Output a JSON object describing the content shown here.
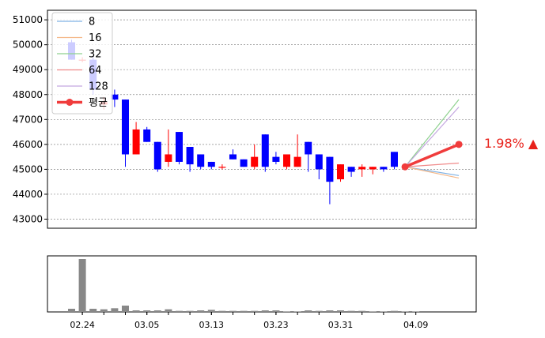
{
  "chart_data": [
    {
      "type": "candlestick",
      "title": "",
      "xlabel": "",
      "ylabel": "",
      "ylim": [
        42600,
        51400
      ],
      "yticks": [
        43000,
        44000,
        45000,
        46000,
        47000,
        48000,
        49000,
        50000,
        51000
      ],
      "grid": true,
      "legend": {
        "placement": "top-left",
        "entries": [
          {
            "label": "8",
            "color": "#7fb2e5"
          },
          {
            "label": "16",
            "color": "#f5b98a"
          },
          {
            "label": "32",
            "color": "#8fd18f"
          },
          {
            "label": "64",
            "color": "#f08a8a"
          },
          {
            "label": "128",
            "color": "#c3a6e0"
          },
          {
            "label": "평균",
            "color": "#f03c3c"
          }
        ]
      },
      "up_color": "#ff0000",
      "down_color": "#0000ff",
      "candles": [
        {
          "o": 50100,
          "h": 50200,
          "l": 49400,
          "c": 49400
        },
        {
          "o": 49400,
          "h": 49500,
          "l": 49300,
          "c": 49400
        },
        {
          "o": 49400,
          "h": 49500,
          "l": 48000,
          "c": 48200
        },
        {
          "o": 47600,
          "h": 47900,
          "l": 47400,
          "c": 47700
        },
        {
          "o": 48000,
          "h": 48200,
          "l": 47500,
          "c": 47800
        },
        {
          "o": 47800,
          "h": 47800,
          "l": 45100,
          "c": 45600
        },
        {
          "o": 45600,
          "h": 46900,
          "l": 45600,
          "c": 46600
        },
        {
          "o": 46600,
          "h": 46700,
          "l": 46100,
          "c": 46100
        },
        {
          "o": 46100,
          "h": 46100,
          "l": 44900,
          "c": 45000
        },
        {
          "o": 45300,
          "h": 46600,
          "l": 45100,
          "c": 45600
        },
        {
          "o": 46500,
          "h": 46500,
          "l": 45200,
          "c": 45300
        },
        {
          "o": 45900,
          "h": 45900,
          "l": 44900,
          "c": 45200
        },
        {
          "o": 45600,
          "h": 45600,
          "l": 45000,
          "c": 45100
        },
        {
          "o": 45300,
          "h": 45300,
          "l": 45000,
          "c": 45100
        },
        {
          "o": 45100,
          "h": 45200,
          "l": 45000,
          "c": 45100
        },
        {
          "o": 45600,
          "h": 45800,
          "l": 45400,
          "c": 45400
        },
        {
          "o": 45400,
          "h": 45400,
          "l": 45100,
          "c": 45100
        },
        {
          "o": 45100,
          "h": 46000,
          "l": 45000,
          "c": 45500
        },
        {
          "o": 46400,
          "h": 46400,
          "l": 44900,
          "c": 45100
        },
        {
          "o": 45500,
          "h": 45700,
          "l": 45200,
          "c": 45300
        },
        {
          "o": 45100,
          "h": 45600,
          "l": 45000,
          "c": 45600
        },
        {
          "o": 45100,
          "h": 46400,
          "l": 45100,
          "c": 45500
        },
        {
          "o": 46100,
          "h": 46100,
          "l": 44900,
          "c": 45600
        },
        {
          "o": 45600,
          "h": 45600,
          "l": 44600,
          "c": 45000
        },
        {
          "o": 45500,
          "h": 45500,
          "l": 43600,
          "c": 44500
        },
        {
          "o": 44600,
          "h": 45200,
          "l": 44500,
          "c": 45200
        },
        {
          "o": 45100,
          "h": 45100,
          "l": 44700,
          "c": 44900
        },
        {
          "o": 45000,
          "h": 45200,
          "l": 44700,
          "c": 45100
        },
        {
          "o": 45000,
          "h": 45100,
          "l": 44800,
          "c": 45100
        },
        {
          "o": 45100,
          "h": 45100,
          "l": 44900,
          "c": 45000
        },
        {
          "o": 45700,
          "h": 45700,
          "l": 45000,
          "c": 45100
        }
      ],
      "forecast": {
        "start_index": 31,
        "end_index": 36,
        "start_value": 45100,
        "lines": [
          {
            "name": "8",
            "end_value": 44750
          },
          {
            "name": "16",
            "end_value": 44650
          },
          {
            "name": "32",
            "end_value": 47800
          },
          {
            "name": "64",
            "end_value": 45250
          },
          {
            "name": "128",
            "end_value": 47500
          },
          {
            "name": "평균",
            "end_value": 46000
          }
        ],
        "change_label": "1.98% ▲",
        "change_color": "#e8221b"
      }
    },
    {
      "type": "bar",
      "title": "",
      "xlabel": "",
      "ylabel": "",
      "bar_color": "#888888",
      "xtick_labels": [
        {
          "index": 1,
          "label": "02.24"
        },
        {
          "index": 7,
          "label": "03.05"
        },
        {
          "index": 13,
          "label": "03.13"
        },
        {
          "index": 19,
          "label": "03.23"
        },
        {
          "index": 25,
          "label": "03.31"
        },
        {
          "index": 32,
          "label": "04.09"
        }
      ],
      "values": [
        6,
        100,
        6,
        5,
        7,
        12,
        3,
        3,
        3,
        5,
        2,
        2,
        3,
        4,
        2,
        2,
        2,
        2,
        3,
        3,
        1,
        1,
        3,
        2,
        3,
        3,
        2,
        2,
        1,
        1,
        2,
        1,
        1
      ]
    }
  ]
}
